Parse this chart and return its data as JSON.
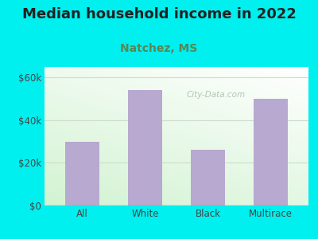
{
  "categories": [
    "All",
    "White",
    "Black",
    "Multirace"
  ],
  "values": [
    30000,
    54000,
    26000,
    50000
  ],
  "bar_color": "#b8a9d0",
  "title": "Median household income in 2022",
  "subtitle": "Natchez, MS",
  "title_fontsize": 13,
  "subtitle_fontsize": 10,
  "ylabel_ticks": [
    0,
    20000,
    40000,
    60000
  ],
  "ylabel_labels": [
    "$0",
    "$20k",
    "$40k",
    "$60k"
  ],
  "ylim": [
    0,
    65000
  ],
  "background_color": "#00EFEF",
  "watermark": "City-Data.com",
  "subtitle_color": "#558855",
  "title_color": "#222222",
  "tick_color": "#444444",
  "grid_color": "#ccddcc"
}
